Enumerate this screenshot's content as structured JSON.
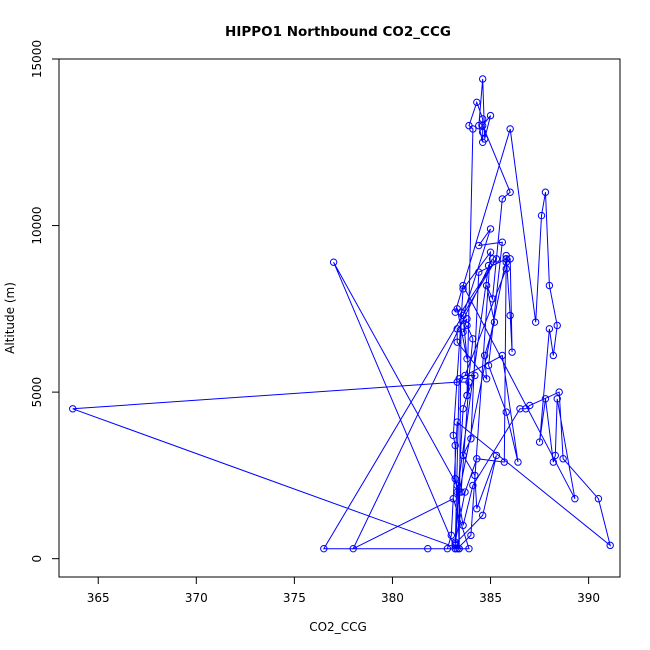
{
  "chart_data": {
    "type": "line",
    "title": "HIPPO1 Northbound CO2_CCG",
    "xlabel": "CO2_CCG",
    "ylabel": "Altitude (m)",
    "xlim": [
      363.0,
      391.6
    ],
    "ylim": [
      -550,
      15000
    ],
    "x_ticks": [
      365,
      370,
      375,
      380,
      385,
      390
    ],
    "y_ticks": [
      0,
      5000,
      10000,
      15000
    ],
    "grid": false,
    "legend": "none",
    "marker": "open-circle",
    "color": "#0000ff",
    "series": [
      {
        "x": [
          383.2,
          384.6,
          385.3,
          384.3,
          384.2,
          383.6,
          384.0,
          384.4,
          385.8,
          385.8,
          386.0,
          386.1,
          386.0,
          385.8,
          385.8,
          383.7,
          384.2,
          383.8,
          384.1,
          383.8,
          383.6,
          383.8,
          383.3,
          383.3,
          384.8,
          384.7,
          385.2,
          384.8,
          385.1,
          385.6,
          386.0,
          384.6,
          385.0,
          384.7,
          384.6,
          384.4,
          384.6,
          384.6,
          384.6,
          384.3,
          383.9,
          384.1,
          383.8,
          383.6,
          383.2,
          383.2,
          383.7,
          384.3,
          385.7,
          385.8,
          383.4,
          383.2,
          383.3,
          384.0,
          385.0,
          383.6,
          383.1,
          383.2,
          383.2,
          383.6,
          384.1,
          386.5,
          386.8,
          387.0,
          388.5,
          388.7,
          390.5,
          391.1,
          383.3,
          383.0,
          382.8,
          381.8,
          383.9,
          383.1,
          378.0,
          385.1,
          384.9,
          383.3,
          383.5,
          383.9,
          383.3,
          363.7,
          383.4,
          383.2,
          376.5,
          385.3,
          383.5,
          383.4,
          383.3,
          377.0,
          383.2,
          383.4,
          385.6,
          386.4,
          385.8,
          384.9,
          385.6,
          384.4,
          385.0,
          383.6,
          383.8,
          383.3,
          383.2,
          386.0,
          387.3,
          387.6,
          387.8,
          388.0,
          388.4,
          388.2,
          388.0,
          387.5,
          387.8,
          388.2,
          388.3,
          388.4,
          389.3,
          383.6
        ],
        "y": [
          450,
          1300,
          3100,
          1500,
          2500,
          3100,
          3600,
          8600,
          9000,
          9100,
          7300,
          6200,
          9000,
          8900,
          8700,
          5500,
          5500,
          4900,
          6600,
          7000,
          6800,
          7200,
          6900,
          6500,
          5400,
          6100,
          7100,
          8200,
          7800,
          10800,
          11000,
          13000,
          13300,
          12600,
          14400,
          13000,
          12500,
          12800,
          13200,
          13700,
          13000,
          12900,
          4900,
          4500,
          400,
          500,
          2000,
          3000,
          2900,
          9000,
          2000,
          400,
          300,
          700,
          9200,
          8100,
          3700,
          3400,
          2400,
          1000,
          2200,
          4500,
          4500,
          4600,
          5000,
          3000,
          1800,
          400,
          4100,
          700,
          300,
          300,
          300,
          1800,
          300,
          9000,
          8800,
          2000,
          2000,
          5300,
          5300,
          4500,
          300,
          300,
          300,
          9000,
          7400,
          300,
          2200,
          8900,
          300,
          5400,
          6100,
          2900,
          4400,
          5800,
          9500,
          9400,
          9900,
          7300,
          6000,
          7500,
          7400,
          12900,
          7100,
          10300,
          11000,
          8200,
          7000,
          6100,
          6900,
          3500,
          4800,
          2900,
          3100,
          4800,
          1800,
          8200
        ]
      }
    ]
  }
}
